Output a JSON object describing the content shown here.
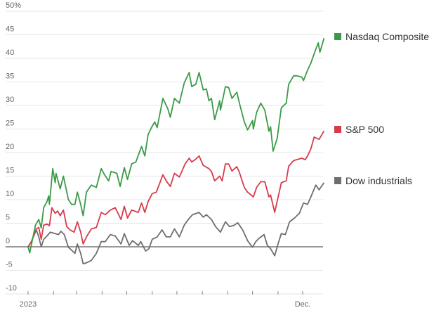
{
  "chart_data": {
    "type": "line",
    "title": "",
    "xlabel": "",
    "ylabel": "",
    "x_unit": "day of year 2023",
    "xlim": [
      0,
      360
    ],
    "ylim": [
      -10,
      50
    ],
    "y_ticks": [
      -10,
      -5,
      0,
      5,
      10,
      15,
      20,
      25,
      30,
      35,
      40,
      45,
      50
    ],
    "y_tick_labels": [
      "-10",
      "-5",
      "0",
      "5",
      "10",
      "15",
      "20",
      "25",
      "30",
      "35",
      "40",
      "45",
      "50%"
    ],
    "x_ticks": [
      0,
      31,
      59,
      90,
      120,
      151,
      181,
      212,
      243,
      273,
      304,
      334
    ],
    "x_tick_labels": [
      {
        "day": 0,
        "label": "2023"
      },
      {
        "day": 334,
        "label": "Dec."
      }
    ],
    "grid": true,
    "legend_placement": "right",
    "series": [
      {
        "name": "Nasdaq Composite",
        "color": "#3b9a48",
        "points": [
          [
            0,
            0
          ],
          [
            2,
            -1.3
          ],
          [
            9,
            4.6
          ],
          [
            13,
            5.8
          ],
          [
            16,
            4
          ],
          [
            19,
            8.3
          ],
          [
            23,
            9.6
          ],
          [
            25,
            10.8
          ],
          [
            26,
            9
          ],
          [
            30,
            16.6
          ],
          [
            33,
            13.6
          ],
          [
            34,
            15.6
          ],
          [
            39,
            12.3
          ],
          [
            43,
            15
          ],
          [
            49,
            10
          ],
          [
            53,
            9
          ],
          [
            57,
            9
          ],
          [
            60,
            11.6
          ],
          [
            64,
            9
          ],
          [
            67,
            6.6
          ],
          [
            71,
            11.6
          ],
          [
            77,
            13.1
          ],
          [
            83,
            12.6
          ],
          [
            89,
            16.6
          ],
          [
            93,
            15.3
          ],
          [
            98,
            14
          ],
          [
            101,
            16
          ],
          [
            108,
            15.6
          ],
          [
            112,
            12.8
          ],
          [
            117,
            16.8
          ],
          [
            121,
            14.3
          ],
          [
            126,
            17.6
          ],
          [
            131,
            18
          ],
          [
            138,
            21.3
          ],
          [
            142,
            19.3
          ],
          [
            146,
            23.8
          ],
          [
            150,
            25.3
          ],
          [
            154,
            26.5
          ],
          [
            157,
            25.3
          ],
          [
            164,
            31.5
          ],
          [
            170,
            29.3
          ],
          [
            173,
            27.5
          ],
          [
            178,
            31.5
          ],
          [
            184,
            30.5
          ],
          [
            190,
            34.8
          ],
          [
            196,
            37
          ],
          [
            199,
            34
          ],
          [
            204,
            34.5
          ],
          [
            208,
            37
          ],
          [
            213,
            33.3
          ],
          [
            217,
            33.5
          ],
          [
            220,
            31
          ],
          [
            223,
            31.5
          ],
          [
            227,
            27
          ],
          [
            233,
            31
          ],
          [
            234,
            29
          ],
          [
            240,
            34
          ],
          [
            244,
            33.8
          ],
          [
            248,
            31.5
          ],
          [
            254,
            32.8
          ],
          [
            257,
            30.5
          ],
          [
            263,
            26.5
          ],
          [
            267,
            24.8
          ],
          [
            273,
            26.8
          ],
          [
            274,
            25
          ],
          [
            278,
            28.5
          ],
          [
            283,
            30.5
          ],
          [
            288,
            29
          ],
          [
            293,
            24.5
          ],
          [
            295,
            25.5
          ],
          [
            298,
            20.3
          ],
          [
            303,
            23
          ],
          [
            308,
            29.5
          ],
          [
            314,
            30.5
          ],
          [
            317,
            34.5
          ],
          [
            323,
            36.3
          ],
          [
            327,
            36.3
          ],
          [
            333,
            36
          ],
          [
            335,
            35.3
          ],
          [
            340,
            37.5
          ],
          [
            344,
            39
          ],
          [
            348,
            41
          ],
          [
            353,
            43.3
          ],
          [
            355,
            41.3
          ],
          [
            360,
            44.3
          ]
        ]
      },
      {
        "name": "S&P 500",
        "color": "#d63b4c",
        "points": [
          [
            0,
            0
          ],
          [
            4,
            1.1
          ],
          [
            10,
            3.8
          ],
          [
            13,
            4.1
          ],
          [
            16,
            1.6
          ],
          [
            19,
            4.6
          ],
          [
            23,
            4.8
          ],
          [
            26,
            4.5
          ],
          [
            29,
            8.3
          ],
          [
            33,
            7.1
          ],
          [
            36,
            7.6
          ],
          [
            39,
            6.6
          ],
          [
            43,
            7.8
          ],
          [
            47,
            4.3
          ],
          [
            51,
            3.6
          ],
          [
            56,
            3.1
          ],
          [
            60,
            5.3
          ],
          [
            64,
            3.1
          ],
          [
            67,
            0.6
          ],
          [
            71,
            2.1
          ],
          [
            77,
            3.8
          ],
          [
            83,
            4.1
          ],
          [
            89,
            7.3
          ],
          [
            94,
            6.8
          ],
          [
            100,
            7.8
          ],
          [
            106,
            8.3
          ],
          [
            113,
            5.8
          ],
          [
            117,
            8.6
          ],
          [
            121,
            6.1
          ],
          [
            126,
            7.8
          ],
          [
            134,
            7.3
          ],
          [
            138,
            9.3
          ],
          [
            142,
            7.3
          ],
          [
            146,
            9.6
          ],
          [
            151,
            11.3
          ],
          [
            156,
            11.6
          ],
          [
            164,
            15.3
          ],
          [
            168,
            14
          ],
          [
            173,
            12.8
          ],
          [
            178,
            15.6
          ],
          [
            184,
            14.8
          ],
          [
            191,
            17.6
          ],
          [
            196,
            18.8
          ],
          [
            199,
            18
          ],
          [
            204,
            18.6
          ],
          [
            208,
            19.3
          ],
          [
            213,
            17.3
          ],
          [
            220,
            16.6
          ],
          [
            223,
            16
          ],
          [
            227,
            14
          ],
          [
            233,
            15
          ],
          [
            236,
            14
          ],
          [
            240,
            17.6
          ],
          [
            244,
            17.6
          ],
          [
            248,
            16.1
          ],
          [
            254,
            17
          ],
          [
            257,
            15.8
          ],
          [
            263,
            12.6
          ],
          [
            267,
            11.6
          ],
          [
            274,
            10.6
          ],
          [
            278,
            12.6
          ],
          [
            283,
            13.8
          ],
          [
            288,
            13.8
          ],
          [
            293,
            10.6
          ],
          [
            295,
            11
          ],
          [
            300,
            7.3
          ],
          [
            308,
            13.6
          ],
          [
            314,
            14
          ],
          [
            317,
            17.1
          ],
          [
            323,
            18.3
          ],
          [
            333,
            18.8
          ],
          [
            337,
            18.5
          ],
          [
            340,
            19.3
          ],
          [
            344,
            20.8
          ],
          [
            348,
            23.3
          ],
          [
            354,
            22.8
          ],
          [
            360,
            24.6
          ]
        ]
      },
      {
        "name": "Dow industrials",
        "color": "#6e6e6e",
        "points": [
          [
            0,
            0
          ],
          [
            4,
            1.1
          ],
          [
            10,
            3.6
          ],
          [
            13,
            2.1
          ],
          [
            16,
            0
          ],
          [
            19,
            1.6
          ],
          [
            23,
            2.3
          ],
          [
            27,
            3.1
          ],
          [
            33,
            2.8
          ],
          [
            37,
            2.6
          ],
          [
            40,
            3.3
          ],
          [
            44,
            2.6
          ],
          [
            49,
            -0.1
          ],
          [
            54,
            -0.9
          ],
          [
            57,
            -1.4
          ],
          [
            60,
            0.6
          ],
          [
            64,
            -1.4
          ],
          [
            67,
            -3.6
          ],
          [
            71,
            -3.4
          ],
          [
            77,
            -2.9
          ],
          [
            83,
            -1.4
          ],
          [
            89,
            1.1
          ],
          [
            94,
            1.1
          ],
          [
            100,
            2.6
          ],
          [
            106,
            2.3
          ],
          [
            113,
            0.6
          ],
          [
            117,
            2.8
          ],
          [
            123,
            0.3
          ],
          [
            127,
            1.3
          ],
          [
            134,
            0.3
          ],
          [
            137,
            1.1
          ],
          [
            143,
            -0.9
          ],
          [
            147,
            -0.4
          ],
          [
            151,
            1.6
          ],
          [
            157,
            2.1
          ],
          [
            163,
            3.6
          ],
          [
            168,
            2.1
          ],
          [
            173,
            2.1
          ],
          [
            178,
            3.8
          ],
          [
            184,
            2.1
          ],
          [
            190,
            4.6
          ],
          [
            194,
            5.6
          ],
          [
            200,
            6.8
          ],
          [
            208,
            7.3
          ],
          [
            213,
            6.3
          ],
          [
            217,
            6.8
          ],
          [
            223,
            5.8
          ],
          [
            228,
            4.3
          ],
          [
            234,
            3.1
          ],
          [
            240,
            5.3
          ],
          [
            245,
            4.3
          ],
          [
            251,
            4.6
          ],
          [
            255,
            5.1
          ],
          [
            261,
            3.6
          ],
          [
            267,
            1.3
          ],
          [
            273,
            -0.1
          ],
          [
            277,
            1.1
          ],
          [
            281,
            1.8
          ],
          [
            287,
            2.6
          ],
          [
            291,
            0.3
          ],
          [
            295,
            -0.4
          ],
          [
            300,
            -1.9
          ],
          [
            304,
            0.6
          ],
          [
            308,
            2.8
          ],
          [
            313,
            2.6
          ],
          [
            318,
            5.3
          ],
          [
            324,
            6.1
          ],
          [
            330,
            7.1
          ],
          [
            335,
            9.3
          ],
          [
            340,
            9
          ],
          [
            344,
            10.6
          ],
          [
            350,
            13.1
          ],
          [
            354,
            12.1
          ],
          [
            360,
            13.6
          ]
        ]
      }
    ]
  }
}
